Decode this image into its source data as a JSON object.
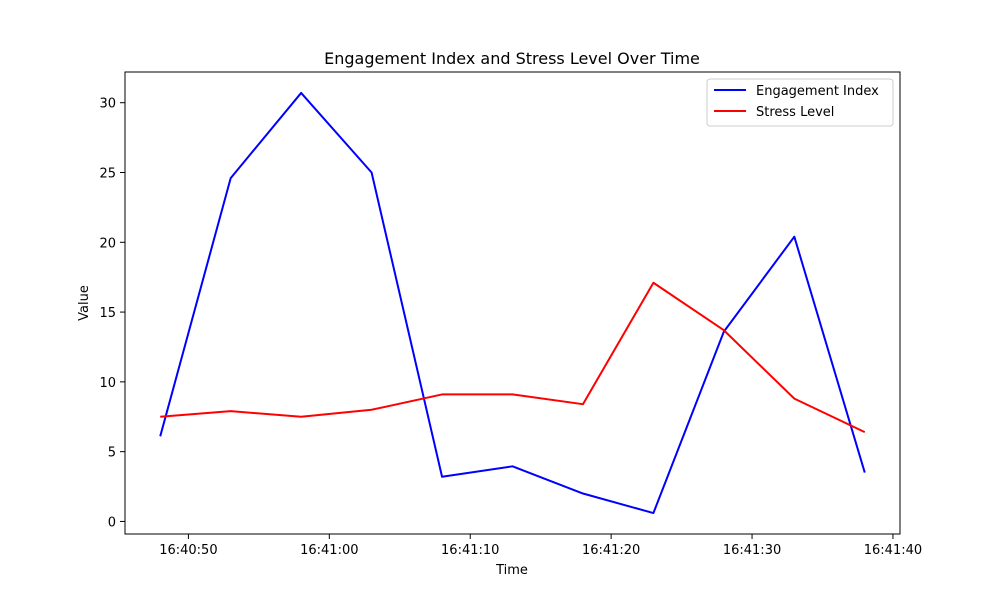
{
  "chart_data": {
    "type": "line",
    "title": "Engagement Index and Stress Level Over Time",
    "xlabel": "Time",
    "ylabel": "Value",
    "x": [
      "16:40:48",
      "16:40:53",
      "16:40:58",
      "16:41:03",
      "16:41:08",
      "16:41:13",
      "16:41:18",
      "16:41:23",
      "16:41:28",
      "16:41:33",
      "16:41:38"
    ],
    "x_seconds": [
      0,
      5,
      10,
      15,
      20,
      25,
      30,
      35,
      40,
      45,
      50
    ],
    "xlim": [
      -2.5,
      52.5
    ],
    "x_ticks": [
      {
        "value": 2,
        "label": "16:40:50"
      },
      {
        "value": 12,
        "label": "16:41:00"
      },
      {
        "value": 22,
        "label": "16:41:10"
      },
      {
        "value": 32,
        "label": "16:41:20"
      },
      {
        "value": 42,
        "label": "16:41:30"
      },
      {
        "value": 52,
        "label": "16:41:40"
      }
    ],
    "ylim": [
      -0.9,
      32.2
    ],
    "y_ticks": [
      0,
      5,
      10,
      15,
      20,
      25,
      30
    ],
    "grid": false,
    "legend_position": "upper right",
    "series": [
      {
        "name": "Engagement Index",
        "color": "#0000ff",
        "values": [
          6.1,
          24.6,
          30.7,
          25.0,
          3.2,
          3.95,
          2.0,
          0.6,
          13.6,
          20.4,
          3.5
        ]
      },
      {
        "name": "Stress Level",
        "color": "#ff0000",
        "values": [
          7.5,
          7.9,
          7.5,
          8.0,
          9.1,
          9.1,
          8.4,
          17.1,
          13.7,
          8.8,
          6.4
        ]
      }
    ]
  }
}
